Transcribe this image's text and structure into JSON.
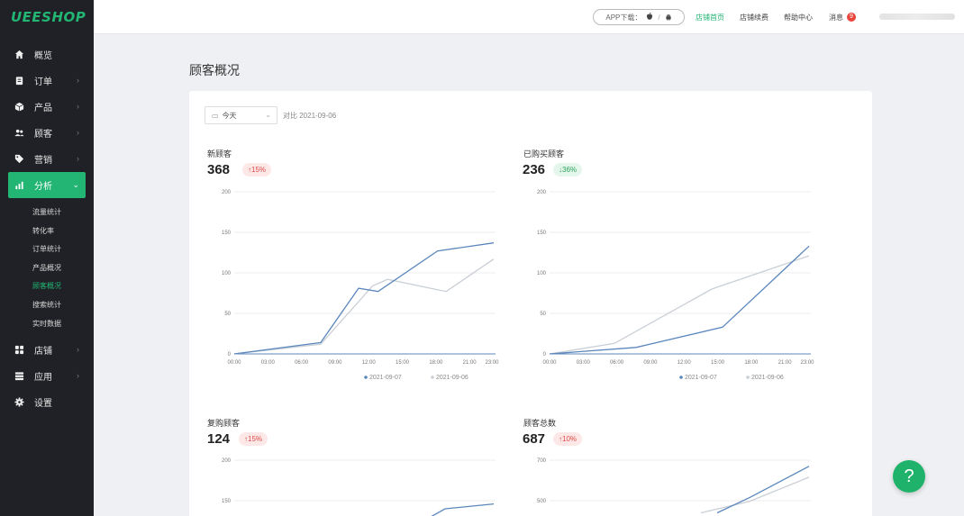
{
  "brand": {
    "logo": "UEESHOP"
  },
  "sidebar": {
    "items": [
      {
        "label": "概览",
        "icon": "home-icon"
      },
      {
        "label": "订单",
        "icon": "clipboard-icon"
      },
      {
        "label": "产品",
        "icon": "box-icon"
      },
      {
        "label": "顾客",
        "icon": "users-icon"
      },
      {
        "label": "营销",
        "icon": "tag-icon"
      },
      {
        "label": "分析",
        "icon": "bar-chart-icon"
      },
      {
        "label": "店铺",
        "icon": "grid-icon"
      },
      {
        "label": "应用",
        "icon": "stack-icon"
      },
      {
        "label": "设置",
        "icon": "gear-icon"
      }
    ],
    "analysis_sub": [
      "流量统计",
      "转化率",
      "订单统计",
      "产品概况",
      "顾客概况",
      "搜索统计",
      "实时数据"
    ]
  },
  "header": {
    "app_download": "APP下载：",
    "links": [
      "店铺首页",
      "店铺续费",
      "帮助中心",
      "消息"
    ],
    "message_count": "9"
  },
  "page": {
    "title": "顾客概况"
  },
  "filter": {
    "date_label": "今天",
    "compare": "对比 2021-09-06"
  },
  "chart_data": [
    {
      "type": "line",
      "title": "新顾客",
      "value": "368",
      "change": "↑15%",
      "trend": "up",
      "x": [
        "00:00",
        "03:00",
        "06:00",
        "09:00",
        "12:00",
        "15:00",
        "18:00",
        "21:00",
        "23:00"
      ],
      "ylim": [
        0,
        200
      ],
      "yticks": [
        "200",
        "150",
        "100",
        "50",
        "0"
      ],
      "series": [
        {
          "name": "2021-09-07",
          "color": "#5b87bd",
          "points": [
            [
              0,
              0
            ],
            [
              8,
              14
            ],
            [
              11.5,
              81
            ],
            [
              13.3,
              77
            ],
            [
              18.8,
              127
            ],
            [
              24,
              137
            ]
          ]
        },
        {
          "name": "2021-09-06",
          "color": "#c9cfd6",
          "points": [
            [
              0,
              0
            ],
            [
              8,
              12
            ],
            [
              12.8,
              84
            ],
            [
              14.2,
              92
            ],
            [
              19.6,
              77
            ],
            [
              24,
              117
            ]
          ]
        }
      ]
    },
    {
      "type": "line",
      "title": "已购买顾客",
      "value": "236",
      "change": "↓36%",
      "trend": "down",
      "x": [
        "00:00",
        "03:00",
        "06:00",
        "09:00",
        "12:00",
        "15:00",
        "18:00",
        "21:00",
        "23:00"
      ],
      "ylim": [
        0,
        200
      ],
      "yticks": [
        "200",
        "150",
        "100",
        "50",
        "0"
      ],
      "series": [
        {
          "name": "2021-09-07",
          "color": "#5b87bd",
          "points": [
            [
              0,
              0
            ],
            [
              8,
              8
            ],
            [
              16,
              33
            ],
            [
              24,
              133
            ]
          ]
        },
        {
          "name": "2021-09-06",
          "color": "#c9cfd6",
          "points": [
            [
              0,
              0
            ],
            [
              6,
              13
            ],
            [
              15,
              80
            ],
            [
              24,
              121
            ]
          ]
        }
      ]
    },
    {
      "type": "line",
      "title": "复购顾客",
      "value": "124",
      "change": "↑15%",
      "trend": "up",
      "x": [],
      "ylim": [
        100,
        200
      ],
      "yticks": [
        "200",
        "150"
      ],
      "series": [
        {
          "name": "2021-09-07",
          "color": "#5b87bd",
          "points": [
            [
              17.5,
              125
            ],
            [
              19.5,
              140
            ],
            [
              24,
              146
            ]
          ]
        },
        {
          "name": "2021-09-06",
          "color": "#c9cfd6",
          "points": []
        }
      ]
    },
    {
      "type": "line",
      "title": "顾客总数",
      "value": "687",
      "change": "↑10%",
      "trend": "up",
      "x": [],
      "ylim": [
        300,
        700
      ],
      "yticks": [
        "700",
        "500"
      ],
      "series": [
        {
          "name": "2021-09-07",
          "color": "#5b87bd",
          "points": [
            [
              15.5,
              440
            ],
            [
              18.5,
              515
            ],
            [
              24,
              670
            ]
          ]
        },
        {
          "name": "2021-09-06",
          "color": "#c9cfd6",
          "points": [
            [
              14,
              440
            ],
            [
              18.5,
              497
            ],
            [
              24,
              616
            ]
          ]
        }
      ]
    }
  ]
}
